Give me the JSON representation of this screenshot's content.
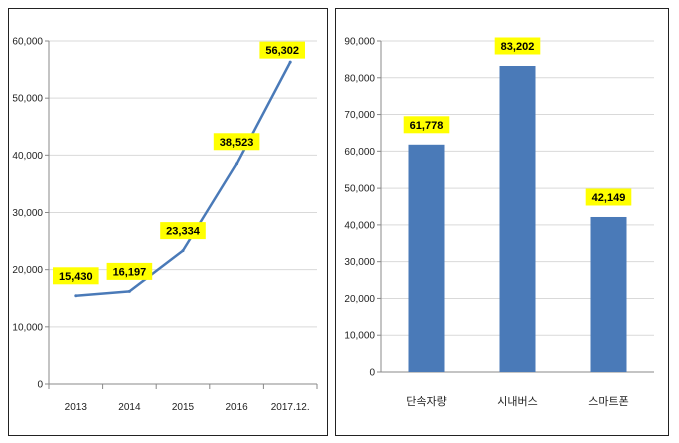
{
  "colors": {
    "series": "#4a7ab8",
    "label_bg": "#ffff00",
    "grid": "#d9d9d9",
    "axis": "#888888"
  },
  "chart_data": [
    {
      "type": "line",
      "title": "",
      "xlabel": "",
      "ylabel": "",
      "ylim": [
        0,
        60000
      ],
      "yticks": [
        "0",
        "10,000",
        "20,000",
        "30,000",
        "40,000",
        "50,000",
        "60,000"
      ],
      "categories": [
        "2013",
        "2014",
        "2015",
        "2016",
        "2017.12."
      ],
      "values": [
        15430,
        16197,
        23334,
        38523,
        56302
      ],
      "data_labels": [
        "15,430",
        "16,197",
        "23,334",
        "38,523",
        "56,302"
      ],
      "grid": "horizontal",
      "legend": "none"
    },
    {
      "type": "bar",
      "title": "",
      "xlabel": "",
      "ylabel": "",
      "ylim": [
        0,
        90000
      ],
      "yticks": [
        "0",
        "10,000",
        "20,000",
        "30,000",
        "40,000",
        "50,000",
        "60,000",
        "70,000",
        "80,000",
        "90,000"
      ],
      "categories": [
        "단속자량",
        "시내버스",
        "스마트폰"
      ],
      "values": [
        61778,
        83202,
        42149
      ],
      "data_labels": [
        "61,778",
        "83,202",
        "42,149"
      ],
      "grid": "horizontal",
      "legend": "none"
    }
  ]
}
